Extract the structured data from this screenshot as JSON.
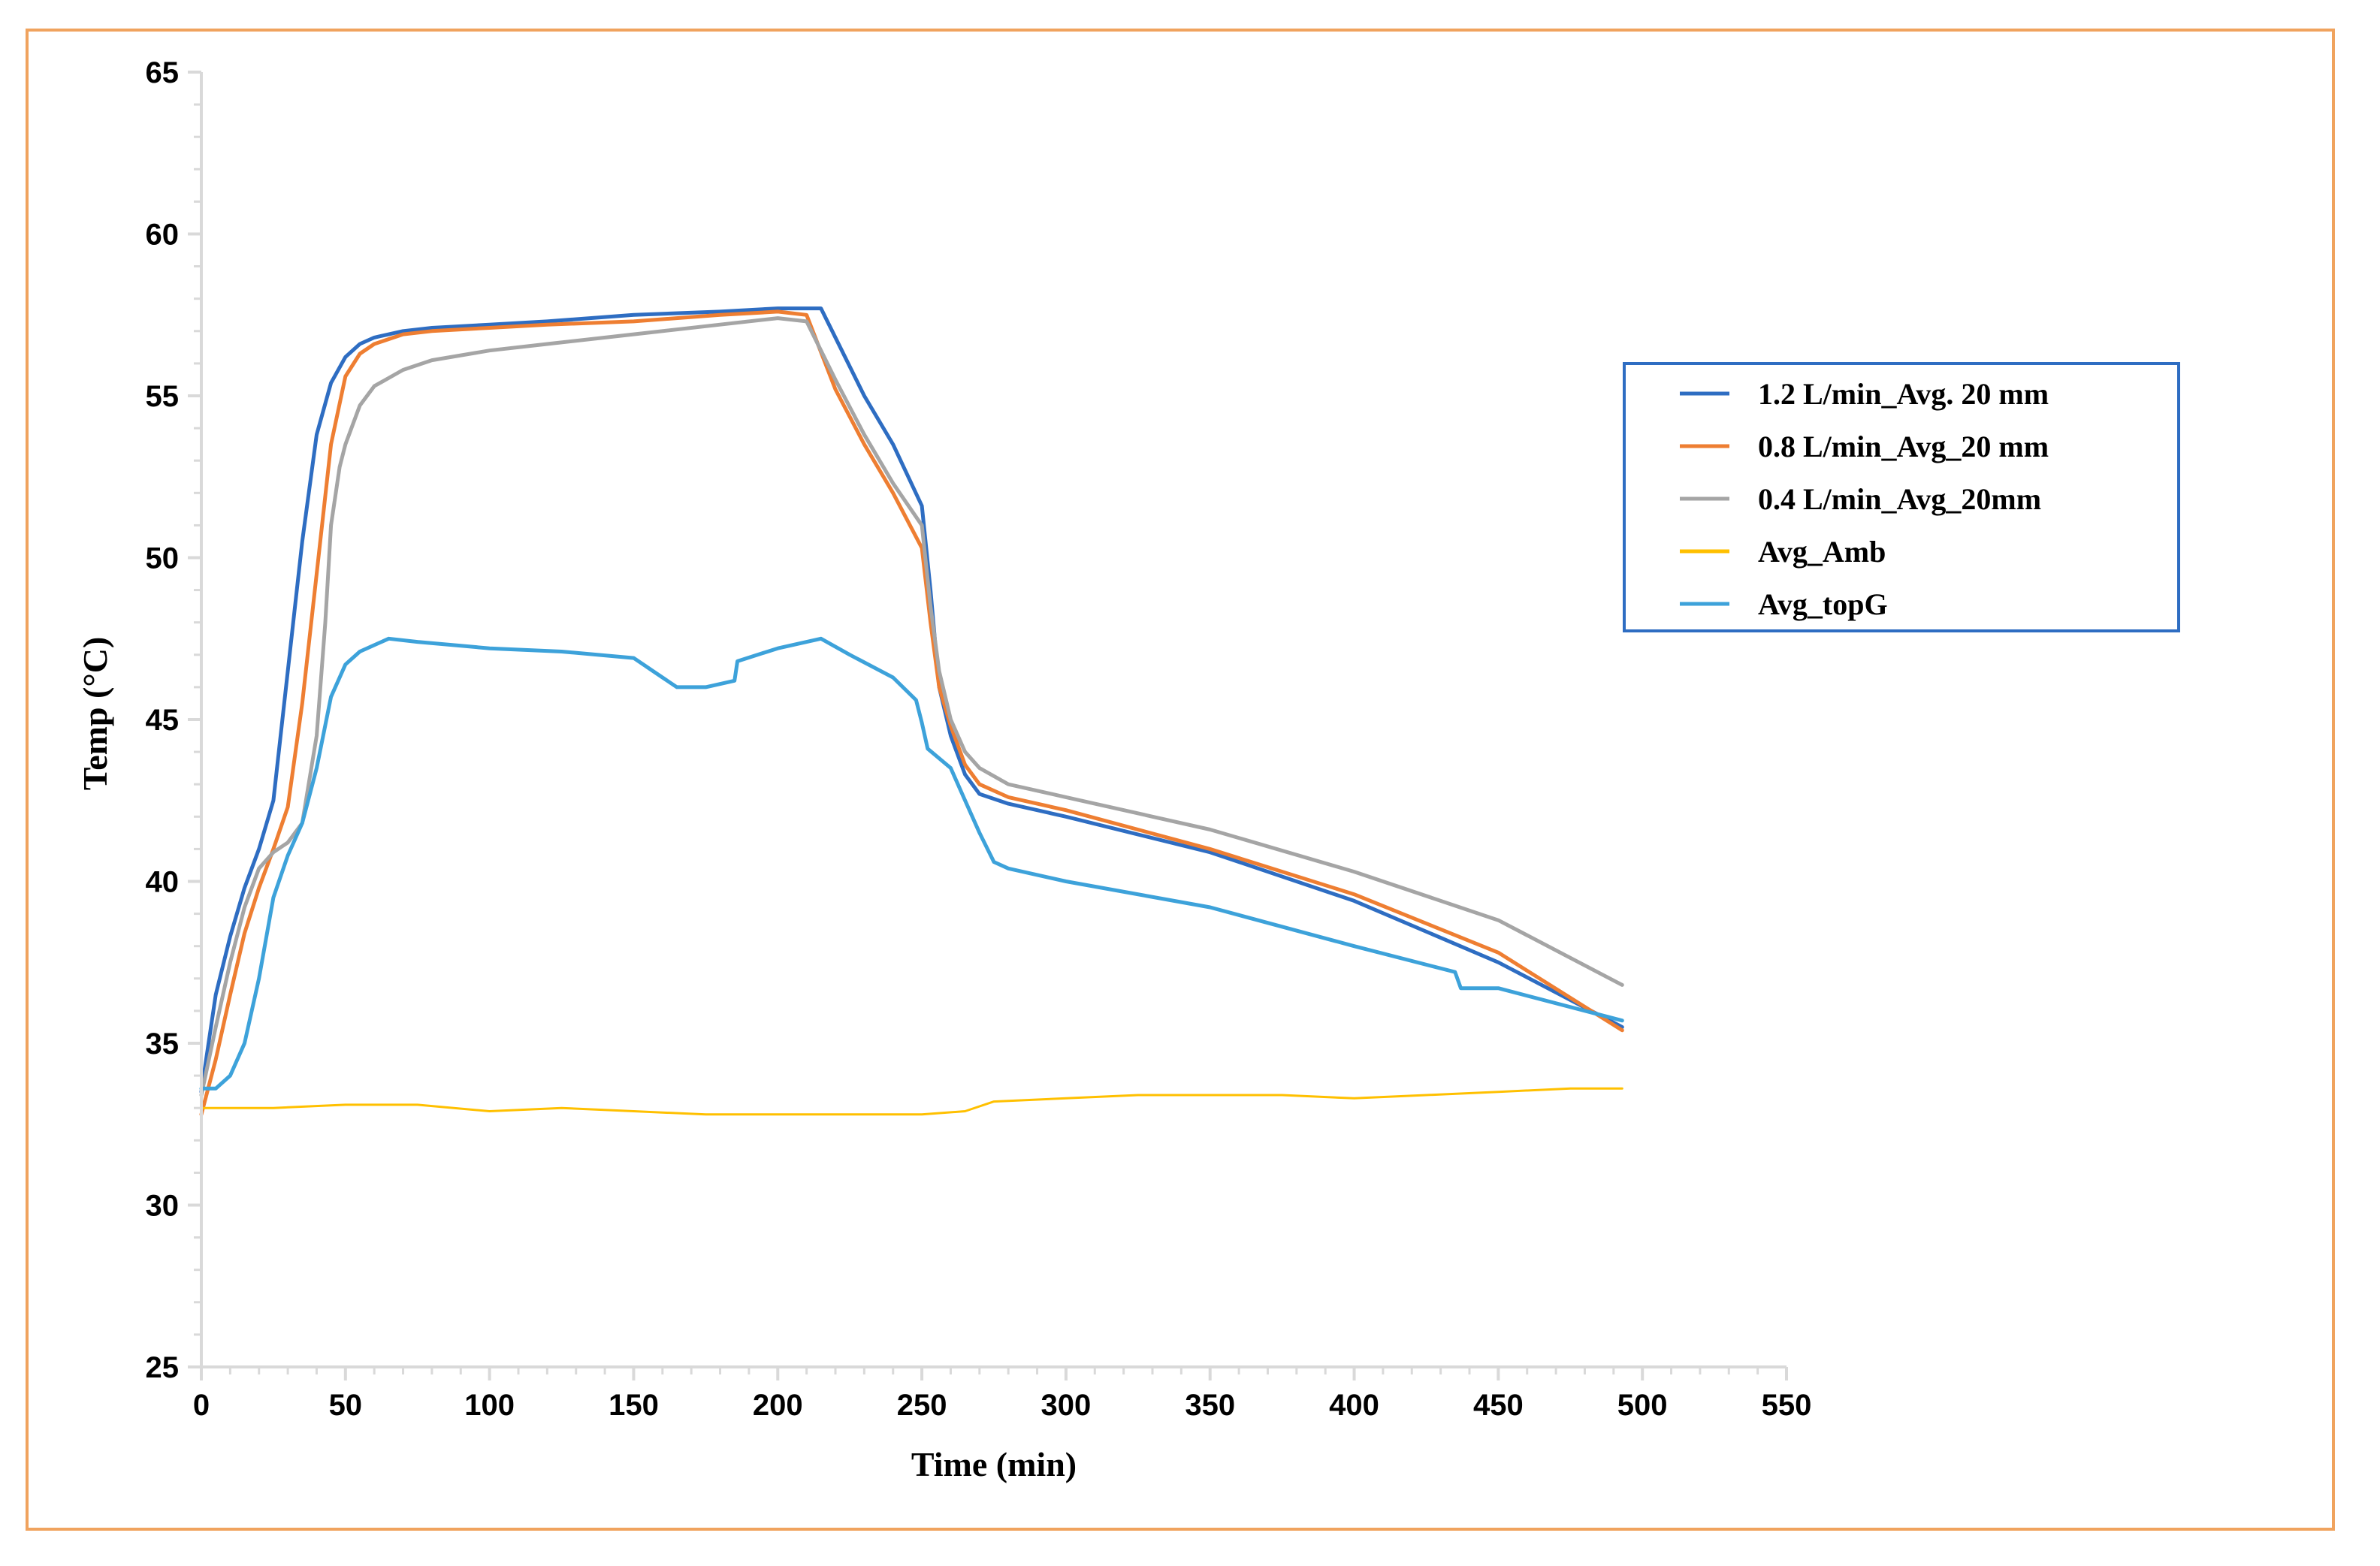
{
  "chart_data": {
    "type": "line",
    "title": "",
    "xlabel": "Time (min)",
    "ylabel": "Temp (°C)",
    "xlim": [
      0,
      550
    ],
    "ylim": [
      25,
      65
    ],
    "xticks": [
      "0",
      "50",
      "100",
      "150",
      "200",
      "250",
      "300",
      "350",
      "400",
      "450",
      "500",
      "550"
    ],
    "yticks": [
      "25",
      "30",
      "35",
      "40",
      "45",
      "50",
      "55",
      "60",
      "65"
    ],
    "legend_position": "right",
    "series": [
      {
        "name": "1.2 L/min_Avg. 20 mm",
        "color": "#2E6DC2",
        "x": [
          0,
          5,
          10,
          15,
          20,
          25,
          30,
          35,
          40,
          45,
          50,
          55,
          60,
          70,
          80,
          100,
          120,
          150,
          180,
          200,
          215,
          230,
          240,
          250,
          253,
          256,
          260,
          265,
          270,
          280,
          300,
          350,
          400,
          450,
          493
        ],
        "y": [
          33.5,
          36.5,
          38.3,
          39.8,
          41.0,
          42.5,
          46.5,
          50.5,
          53.8,
          55.4,
          56.2,
          56.6,
          56.8,
          57.0,
          57.1,
          57.2,
          57.3,
          57.5,
          57.6,
          57.7,
          57.7,
          55.0,
          53.5,
          51.6,
          49.0,
          46.0,
          44.5,
          43.3,
          42.7,
          42.4,
          42.0,
          40.9,
          39.4,
          37.5,
          35.5
        ]
      },
      {
        "name": "0.8 L/min_Avg_20 mm",
        "color": "#EE7E32",
        "x": [
          0,
          5,
          10,
          15,
          20,
          25,
          30,
          35,
          40,
          45,
          50,
          55,
          60,
          70,
          80,
          100,
          120,
          150,
          180,
          200,
          210,
          220,
          230,
          240,
          250,
          253,
          256,
          260,
          265,
          270,
          280,
          300,
          350,
          400,
          450,
          493
        ],
        "y": [
          32.8,
          34.5,
          36.5,
          38.4,
          39.8,
          41.0,
          42.3,
          45.5,
          49.5,
          53.5,
          55.6,
          56.3,
          56.6,
          56.9,
          57.0,
          57.1,
          57.2,
          57.3,
          57.5,
          57.6,
          57.5,
          55.2,
          53.5,
          52.0,
          50.3,
          48.0,
          46.0,
          44.8,
          43.6,
          43.0,
          42.6,
          42.2,
          41.0,
          39.6,
          37.8,
          35.4
        ]
      },
      {
        "name": "0.4 L/min_Avg_20mm",
        "color": "#A5A5A5",
        "x": [
          0,
          5,
          10,
          15,
          20,
          25,
          30,
          35,
          40,
          43,
          45,
          48,
          50,
          55,
          60,
          70,
          80,
          100,
          120,
          150,
          180,
          200,
          210,
          220,
          230,
          240,
          250,
          253,
          256,
          260,
          265,
          270,
          280,
          300,
          350,
          400,
          450,
          493
        ],
        "y": [
          33.4,
          35.5,
          37.5,
          39.2,
          40.4,
          40.9,
          41.2,
          41.8,
          44.5,
          48.0,
          51.0,
          52.8,
          53.5,
          54.7,
          55.3,
          55.8,
          56.1,
          56.4,
          56.6,
          56.9,
          57.2,
          57.4,
          57.3,
          55.5,
          53.8,
          52.3,
          51.0,
          48.5,
          46.5,
          45.0,
          44.0,
          43.5,
          43.0,
          42.6,
          41.6,
          40.3,
          38.8,
          36.8
        ]
      },
      {
        "name": "Avg_Amb",
        "color": "#FFC000",
        "x": [
          0,
          25,
          50,
          75,
          100,
          125,
          150,
          175,
          200,
          225,
          250,
          265,
          275,
          300,
          325,
          350,
          375,
          400,
          425,
          450,
          475,
          493
        ],
        "y": [
          33.0,
          33.0,
          33.1,
          33.1,
          32.9,
          33.0,
          32.9,
          32.8,
          32.8,
          32.8,
          32.8,
          32.9,
          33.2,
          33.3,
          33.4,
          33.4,
          33.4,
          33.3,
          33.4,
          33.5,
          33.6,
          33.6
        ]
      },
      {
        "name": "Avg_topG",
        "color": "#3DA2DA",
        "x": [
          0,
          5,
          10,
          15,
          20,
          25,
          30,
          35,
          40,
          45,
          50,
          55,
          60,
          65,
          75,
          100,
          125,
          150,
          155,
          160,
          165,
          175,
          185,
          186,
          200,
          215,
          225,
          240,
          248,
          250,
          252,
          260,
          265,
          270,
          275,
          280,
          300,
          350,
          400,
          435,
          437,
          450,
          493
        ],
        "y": [
          33.6,
          33.6,
          34.0,
          35.0,
          37.0,
          39.5,
          40.8,
          41.8,
          43.5,
          45.7,
          46.7,
          47.1,
          47.3,
          47.5,
          47.4,
          47.2,
          47.1,
          46.9,
          46.6,
          46.3,
          46.0,
          46.0,
          46.2,
          46.8,
          47.2,
          47.5,
          47.0,
          46.3,
          45.6,
          44.9,
          44.1,
          43.5,
          42.5,
          41.5,
          40.6,
          40.4,
          40.0,
          39.2,
          38.0,
          37.2,
          36.7,
          36.7,
          35.7
        ]
      }
    ]
  }
}
